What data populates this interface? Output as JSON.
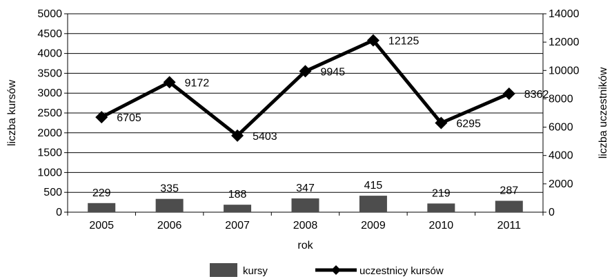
{
  "chart_data": {
    "type": "bar",
    "xlabel": "rok",
    "ylabel_left": "liczba kursów",
    "ylabel_right": "liczba uczestników",
    "categories": [
      "2005",
      "2006",
      "2007",
      "2008",
      "2009",
      "2010",
      "2011"
    ],
    "y_left": {
      "range": [
        0,
        5000
      ],
      "ticks": [
        "0",
        "500",
        "1000",
        "1500",
        "2000",
        "2500",
        "3000",
        "3500",
        "4000",
        "4500",
        "5000"
      ]
    },
    "y_right": {
      "range": [
        0,
        14000
      ],
      "ticks": [
        "0",
        "2000",
        "4000",
        "6000",
        "8000",
        "10000",
        "12000",
        "14000"
      ]
    },
    "grid": true,
    "legend_position": "bottom",
    "series": [
      {
        "name": "kursy",
        "type": "bar",
        "axis": "left",
        "color": "#4d4d4d",
        "values": [
          229,
          335,
          188,
          347,
          415,
          219,
          287
        ],
        "labels": [
          "229",
          "335",
          "188",
          "347",
          "415",
          "219",
          "287"
        ]
      },
      {
        "name": "uczestnicy kursów",
        "type": "line",
        "axis": "right",
        "color": "#000000",
        "marker": "diamond",
        "values": [
          6705,
          9172,
          5403,
          9945,
          12125,
          6295,
          8362
        ],
        "labels": [
          "6705",
          "9172",
          "5403",
          "9945",
          "12125",
          "6295",
          "8362"
        ]
      }
    ]
  }
}
